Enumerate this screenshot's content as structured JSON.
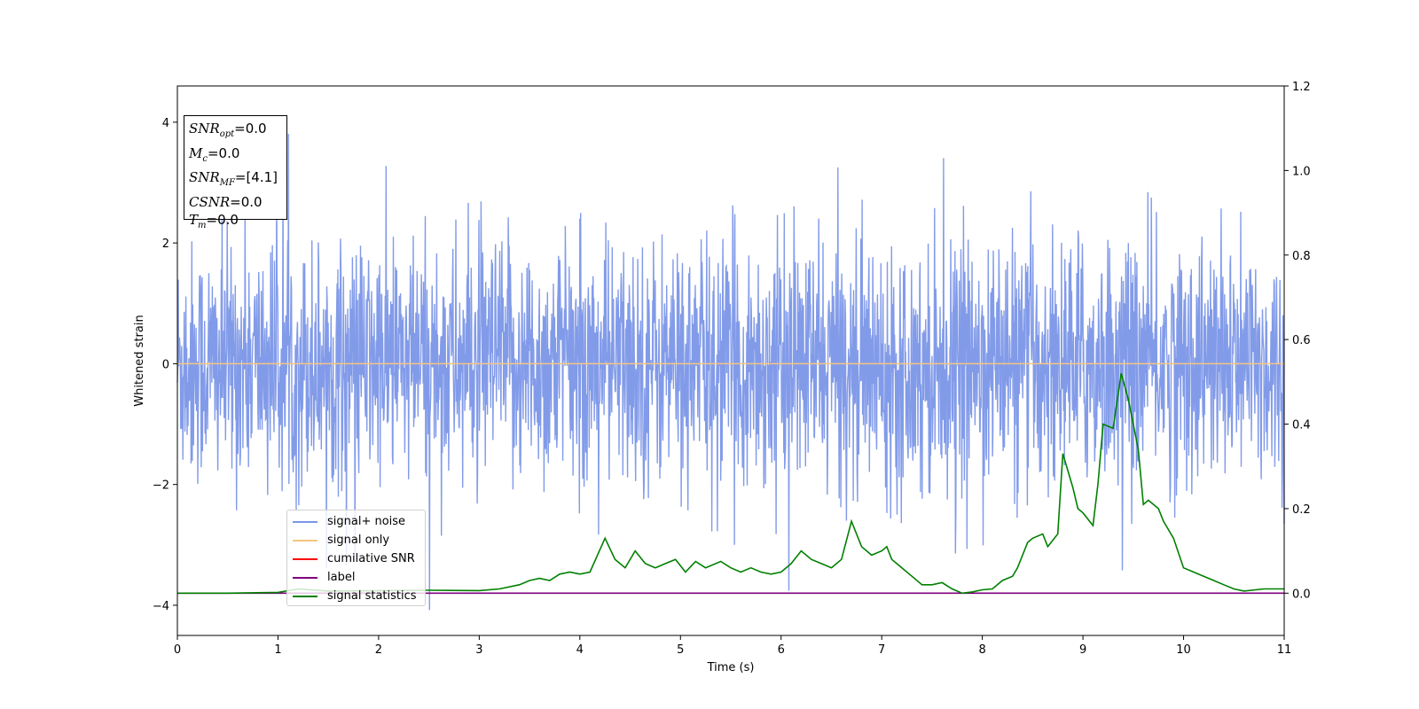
{
  "chart_data": {
    "type": "line",
    "xlabel": "Time (s)",
    "ylabel": "Whitened strain",
    "xlim": [
      0,
      11
    ],
    "ylim": [
      -4.5,
      4.6
    ],
    "y2lim": [
      -0.1,
      1.2
    ],
    "x_ticks": [
      "0",
      "1",
      "2",
      "3",
      "4",
      "5",
      "6",
      "7",
      "8",
      "9",
      "10",
      "11"
    ],
    "y_ticks": [
      "−4",
      "−2",
      "0",
      "2",
      "4"
    ],
    "y2_ticks": [
      "0.0",
      "0.2",
      "0.4",
      "0.6",
      "0.8",
      "1.0",
      "1.2"
    ],
    "grid": false,
    "legend_position": "lower-left",
    "annotation": {
      "snr_opt": {
        "symbol": "SNR",
        "sub": "opt",
        "value": "=0.0"
      },
      "mc": {
        "symbol": "M",
        "sub": "c",
        "value": "=0.0"
      },
      "snr_mf": {
        "symbol": "SNR",
        "sub": "MF",
        "value": "=[4.1]"
      },
      "csnr": {
        "symbol": "CSNR",
        "value": "=0.0"
      },
      "tm": {
        "symbol": "T",
        "sub": "m",
        "value": "=0.0"
      }
    },
    "series": [
      {
        "name": "signal+ noise",
        "color": "#7b96e8",
        "axis": "left",
        "note": "noise band, approximately within ±1.8 with spikes up to ~4.1 and down to ~-4.1"
      },
      {
        "name": "signal only",
        "color": "#f5c580",
        "axis": "left",
        "x": [
          0,
          11
        ],
        "values": [
          0,
          0
        ]
      },
      {
        "name": "cumilative SNR",
        "color": "#ff0000",
        "axis": "right",
        "x": [],
        "values": []
      },
      {
        "name": "label",
        "color": "#800080",
        "axis": "right",
        "x": [
          0,
          11
        ],
        "values": [
          0,
          0
        ]
      },
      {
        "name": "signal statistics",
        "color": "#008000",
        "axis": "right",
        "x": [
          0,
          0.5,
          1.0,
          1.2,
          1.5,
          2.0,
          2.5,
          3.0,
          3.2,
          3.4,
          3.5,
          3.6,
          3.7,
          3.8,
          3.9,
          4.0,
          4.1,
          4.25,
          4.35,
          4.45,
          4.55,
          4.65,
          4.75,
          4.85,
          4.95,
          5.05,
          5.15,
          5.25,
          5.4,
          5.5,
          5.6,
          5.7,
          5.8,
          5.9,
          6.0,
          6.1,
          6.2,
          6.3,
          6.4,
          6.5,
          6.6,
          6.7,
          6.8,
          6.9,
          7.0,
          7.05,
          7.1,
          7.2,
          7.3,
          7.4,
          7.5,
          7.6,
          7.7,
          7.8,
          7.9,
          8.0,
          8.1,
          8.2,
          8.3,
          8.35,
          8.45,
          8.5,
          8.6,
          8.65,
          8.75,
          8.8,
          8.9,
          8.95,
          9.0,
          9.1,
          9.15,
          9.2,
          9.3,
          9.38,
          9.45,
          9.55,
          9.6,
          9.65,
          9.75,
          9.8,
          9.9,
          10.0,
          10.1,
          10.2,
          10.3,
          10.4,
          10.5,
          10.6,
          10.8,
          11.0
        ],
        "values": [
          0.0,
          0.0,
          0.002,
          0.01,
          0.005,
          0.006,
          0.007,
          0.006,
          0.01,
          0.02,
          0.03,
          0.035,
          0.03,
          0.045,
          0.05,
          0.045,
          0.05,
          0.13,
          0.08,
          0.06,
          0.1,
          0.07,
          0.06,
          0.07,
          0.08,
          0.05,
          0.075,
          0.06,
          0.075,
          0.06,
          0.05,
          0.06,
          0.05,
          0.045,
          0.05,
          0.07,
          0.1,
          0.08,
          0.07,
          0.06,
          0.08,
          0.17,
          0.11,
          0.09,
          0.1,
          0.11,
          0.08,
          0.06,
          0.04,
          0.02,
          0.02,
          0.025,
          0.01,
          0.0,
          0.003,
          0.008,
          0.01,
          0.03,
          0.04,
          0.06,
          0.12,
          0.13,
          0.14,
          0.11,
          0.14,
          0.33,
          0.25,
          0.2,
          0.19,
          0.16,
          0.26,
          0.4,
          0.39,
          0.52,
          0.46,
          0.34,
          0.21,
          0.22,
          0.2,
          0.17,
          0.13,
          0.06,
          0.05,
          0.04,
          0.03,
          0.02,
          0.01,
          0.005,
          0.01,
          0.01
        ]
      }
    ]
  }
}
